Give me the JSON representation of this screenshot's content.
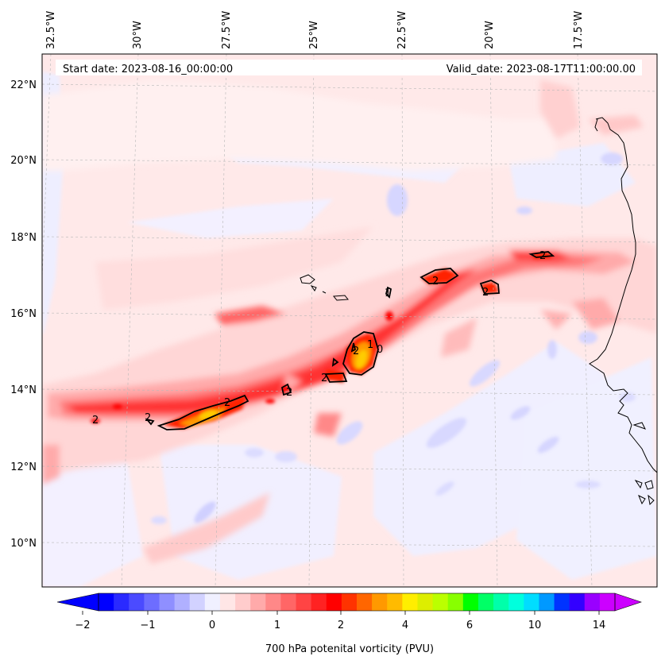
{
  "map": {
    "lon_labels": [
      "32.5°W",
      "30°W",
      "27.5°W",
      "25°W",
      "22.5°W",
      "20°W",
      "17.5°W"
    ],
    "lat_labels": [
      "22°N",
      "20°N",
      "18°N",
      "16°N",
      "14°N",
      "12°N",
      "10°N"
    ],
    "start_date": "Start date: 2023-08-16_00:00:00",
    "valid_date": "Valid_date: 2023-08-17T11:00:00.00",
    "contour_labels": [
      "2",
      "2",
      "2",
      "2",
      "2",
      "2",
      "1",
      "2",
      "2",
      "2",
      "1",
      "0"
    ]
  },
  "colorbar": {
    "label": "700 hPa potenital vorticity (PVU)",
    "tick_labels": [
      "−2",
      "−1",
      "0",
      "1",
      "2",
      "4",
      "6",
      "10",
      "14"
    ],
    "colors": [
      "#0000ff",
      "#2a2aff",
      "#4b4bff",
      "#6d6dff",
      "#8f8fff",
      "#b0b0ff",
      "#d2d2ff",
      "#f0f0ff",
      "#ffe6e6",
      "#ffcccc",
      "#ffaaaa",
      "#ff8888",
      "#ff6666",
      "#ff4444",
      "#ff2222",
      "#ff0000",
      "#ff3300",
      "#ff6600",
      "#ff9900",
      "#ffbb00",
      "#ffee00",
      "#ddee00",
      "#bbff00",
      "#88ff00",
      "#00ff00",
      "#00ff66",
      "#00ffaa",
      "#00ffdd",
      "#00ddff",
      "#0099ff",
      "#0033ff",
      "#3300ff",
      "#9900ff",
      "#cc00ff"
    ],
    "under_color": "#0000ff",
    "over_color": "#cc00ff"
  }
}
